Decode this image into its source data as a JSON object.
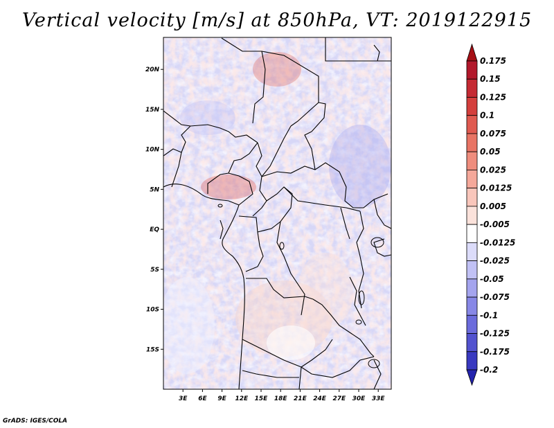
{
  "title": "Vertical velocity [m/s] at 850hPa, VT: 2019122915",
  "credit": "GrADS: IGES/COLA",
  "map": {
    "lon_range": [
      0,
      35
    ],
    "lat_range": [
      -20,
      24
    ],
    "lon_ticks": [
      {
        "lon": 3,
        "label": "3E"
      },
      {
        "lon": 6,
        "label": "6E"
      },
      {
        "lon": 9,
        "label": "9E"
      },
      {
        "lon": 12,
        "label": "12E"
      },
      {
        "lon": 15,
        "label": "15E"
      },
      {
        "lon": 18,
        "label": "18E"
      },
      {
        "lon": 21,
        "label": "21E"
      },
      {
        "lon": 24,
        "label": "24E"
      },
      {
        "lon": 27,
        "label": "27E"
      },
      {
        "lon": 30,
        "label": "30E"
      },
      {
        "lon": 33,
        "label": "33E"
      }
    ],
    "lat_ticks": [
      {
        "lat": 20,
        "label": "20N"
      },
      {
        "lat": 15,
        "label": "15N"
      },
      {
        "lat": 10,
        "label": "10N"
      },
      {
        "lat": 5,
        "label": "5N"
      },
      {
        "lat": 0,
        "label": "EQ"
      },
      {
        "lat": -5,
        "label": "5S"
      },
      {
        "lat": -10,
        "label": "10S"
      },
      {
        "lat": -15,
        "label": "15S"
      }
    ]
  },
  "colorbar": {
    "levels": [
      {
        "label": "0.175",
        "color": "#b2182b"
      },
      {
        "label": "0.15",
        "color": "#c52a33"
      },
      {
        "label": "0.125",
        "color": "#d43f3c"
      },
      {
        "label": "0.1",
        "color": "#e05a50"
      },
      {
        "label": "0.075",
        "color": "#e87464"
      },
      {
        "label": "0.05",
        "color": "#ef8d7d"
      },
      {
        "label": "0.025",
        "color": "#f5a89a"
      },
      {
        "label": "0.0125",
        "color": "#f9c6bb"
      },
      {
        "label": "0.005",
        "color": "#fbe2db"
      },
      {
        "label": "-0.005",
        "color": "#ffffff"
      },
      {
        "label": "-0.0125",
        "color": "#dcdcfa"
      },
      {
        "label": "-0.025",
        "color": "#c1c1f5"
      },
      {
        "label": "-0.05",
        "color": "#a4a4ee"
      },
      {
        "label": "-0.075",
        "color": "#8787e6"
      },
      {
        "label": "-0.1",
        "color": "#6b6bdc"
      },
      {
        "label": "-0.125",
        "color": "#5252cf"
      },
      {
        "label": "-0.175",
        "color": "#3939c0"
      },
      {
        "label": "-0.2",
        "color": "#2323ad"
      }
    ],
    "top_arrow_color": "#a50f15",
    "bottom_arrow_color": "#1a1a9a"
  }
}
